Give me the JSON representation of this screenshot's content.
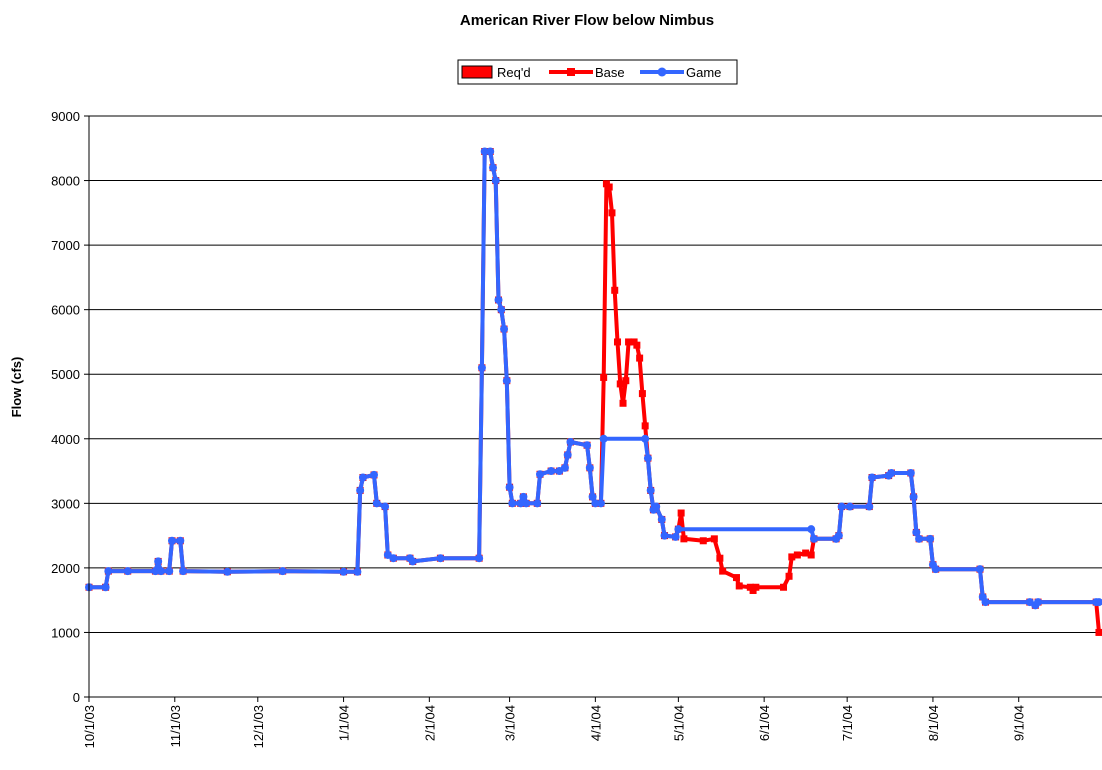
{
  "chart_data": {
    "type": "line",
    "title": "American River Flow below Nimbus",
    "xlabel": "",
    "ylabel": "Flow (cfs)",
    "ylim": [
      0,
      9000
    ],
    "yticks": [
      0,
      1000,
      2000,
      3000,
      4000,
      5000,
      6000,
      7000,
      8000,
      9000
    ],
    "xlim": [
      "2003-10-01",
      "2004-09-30"
    ],
    "x_tick_labels": [
      "10/1/03",
      "11/1/03",
      "12/1/03",
      "1/1/04",
      "2/1/04",
      "3/1/04",
      "4/1/04",
      "5/1/04",
      "6/1/04",
      "7/1/04",
      "8/1/04",
      "9/1/04"
    ],
    "x_tick_dates": [
      "2003-10-01",
      "2003-11-01",
      "2003-12-01",
      "2004-01-01",
      "2004-02-01",
      "2004-03-01",
      "2004-04-01",
      "2004-05-01",
      "2004-06-01",
      "2004-07-01",
      "2004-08-01",
      "2004-09-01"
    ],
    "grid": "horizontal",
    "legend": "top-center",
    "series": [
      {
        "name": "Req'd",
        "kind": "bar",
        "color": "#ff0000",
        "points": []
      },
      {
        "name": "Base",
        "kind": "line",
        "color": "#ff0000",
        "marker": "square",
        "points": [
          [
            "2003-10-01",
            1700
          ],
          [
            "2003-10-07",
            1700
          ],
          [
            "2003-10-08",
            1950
          ],
          [
            "2003-10-15",
            1950
          ],
          [
            "2003-10-25",
            1950
          ],
          [
            "2003-10-26",
            2100
          ],
          [
            "2003-10-27",
            1950
          ],
          [
            "2003-10-30",
            1950
          ],
          [
            "2003-10-31",
            2420
          ],
          [
            "2003-11-03",
            2420
          ],
          [
            "2003-11-04",
            1950
          ],
          [
            "2003-11-20",
            1940
          ],
          [
            "2003-12-10",
            1950
          ],
          [
            "2004-01-01",
            1940
          ],
          [
            "2004-01-06",
            1940
          ],
          [
            "2004-01-07",
            3200
          ],
          [
            "2004-01-08",
            3400
          ],
          [
            "2004-01-12",
            3440
          ],
          [
            "2004-01-13",
            3000
          ],
          [
            "2004-01-16",
            2950
          ],
          [
            "2004-01-17",
            2200
          ],
          [
            "2004-01-19",
            2150
          ],
          [
            "2004-01-25",
            2150
          ],
          [
            "2004-01-26",
            2100
          ],
          [
            "2004-02-05",
            2150
          ],
          [
            "2004-02-19",
            2150
          ],
          [
            "2004-02-20",
            5100
          ],
          [
            "2004-02-21",
            8450
          ],
          [
            "2004-02-23",
            8450
          ],
          [
            "2004-02-24",
            8200
          ],
          [
            "2004-02-25",
            8000
          ],
          [
            "2004-02-26",
            6150
          ],
          [
            "2004-02-27",
            6000
          ],
          [
            "2004-02-28",
            5700
          ],
          [
            "2004-02-29",
            4900
          ],
          [
            "2004-03-01",
            3250
          ],
          [
            "2004-03-02",
            3000
          ],
          [
            "2004-03-05",
            3000
          ],
          [
            "2004-03-06",
            3100
          ],
          [
            "2004-03-07",
            3000
          ],
          [
            "2004-03-11",
            3000
          ],
          [
            "2004-03-12",
            3450
          ],
          [
            "2004-03-16",
            3500
          ],
          [
            "2004-03-19",
            3500
          ],
          [
            "2004-03-21",
            3550
          ],
          [
            "2004-03-22",
            3750
          ],
          [
            "2004-03-23",
            3950
          ],
          [
            "2004-03-29",
            3900
          ],
          [
            "2004-03-30",
            3550
          ],
          [
            "2004-03-31",
            3100
          ],
          [
            "2004-04-01",
            3000
          ],
          [
            "2004-04-03",
            3000
          ],
          [
            "2004-04-04",
            4950
          ],
          [
            "2004-04-05",
            7950
          ],
          [
            "2004-04-06",
            7900
          ],
          [
            "2004-04-07",
            7500
          ],
          [
            "2004-04-08",
            6300
          ],
          [
            "2004-04-09",
            5500
          ],
          [
            "2004-04-10",
            4850
          ],
          [
            "2004-04-11",
            4550
          ],
          [
            "2004-04-12",
            4900
          ],
          [
            "2004-04-13",
            5500
          ],
          [
            "2004-04-15",
            5500
          ],
          [
            "2004-04-16",
            5450
          ],
          [
            "2004-04-17",
            5250
          ],
          [
            "2004-04-18",
            4700
          ],
          [
            "2004-04-19",
            4200
          ],
          [
            "2004-04-20",
            3700
          ],
          [
            "2004-04-21",
            3200
          ],
          [
            "2004-04-22",
            2900
          ],
          [
            "2004-04-23",
            2950
          ],
          [
            "2004-04-25",
            2750
          ],
          [
            "2004-04-26",
            2500
          ],
          [
            "2004-04-30",
            2480
          ],
          [
            "2004-05-01",
            2600
          ],
          [
            "2004-05-02",
            2850
          ],
          [
            "2004-05-03",
            2450
          ],
          [
            "2004-05-10",
            2420
          ],
          [
            "2004-05-14",
            2450
          ],
          [
            "2004-05-16",
            2150
          ],
          [
            "2004-05-17",
            1950
          ],
          [
            "2004-05-22",
            1850
          ],
          [
            "2004-05-23",
            1720
          ],
          [
            "2004-05-27",
            1700
          ],
          [
            "2004-05-28",
            1650
          ],
          [
            "2004-05-29",
            1700
          ],
          [
            "2004-06-08",
            1700
          ],
          [
            "2004-06-10",
            1870
          ],
          [
            "2004-06-11",
            2170
          ],
          [
            "2004-06-13",
            2200
          ],
          [
            "2004-06-16",
            2230
          ],
          [
            "2004-06-18",
            2200
          ],
          [
            "2004-06-19",
            2450
          ],
          [
            "2004-06-27",
            2450
          ],
          [
            "2004-06-28",
            2500
          ],
          [
            "2004-06-29",
            2950
          ],
          [
            "2004-07-02",
            2950
          ],
          [
            "2004-07-09",
            2950
          ],
          [
            "2004-07-10",
            3400
          ],
          [
            "2004-07-16",
            3430
          ],
          [
            "2004-07-17",
            3470
          ],
          [
            "2004-07-24",
            3470
          ],
          [
            "2004-07-25",
            3100
          ],
          [
            "2004-07-26",
            2550
          ],
          [
            "2004-07-27",
            2450
          ],
          [
            "2004-07-31",
            2450
          ],
          [
            "2004-08-01",
            2050
          ],
          [
            "2004-08-02",
            1980
          ],
          [
            "2004-08-18",
            1980
          ],
          [
            "2004-08-19",
            1550
          ],
          [
            "2004-08-20",
            1470
          ],
          [
            "2004-09-05",
            1470
          ],
          [
            "2004-09-07",
            1420
          ],
          [
            "2004-09-08",
            1470
          ],
          [
            "2004-09-29",
            1470
          ],
          [
            "2004-09-30",
            1000
          ]
        ]
      },
      {
        "name": "Game",
        "kind": "line",
        "color": "#3366ff",
        "marker": "circle",
        "points": [
          [
            "2003-10-01",
            1700
          ],
          [
            "2003-10-07",
            1700
          ],
          [
            "2003-10-08",
            1950
          ],
          [
            "2003-10-15",
            1950
          ],
          [
            "2003-10-25",
            1950
          ],
          [
            "2003-10-26",
            2100
          ],
          [
            "2003-10-27",
            1950
          ],
          [
            "2003-10-30",
            1950
          ],
          [
            "2003-10-31",
            2420
          ],
          [
            "2003-11-03",
            2420
          ],
          [
            "2003-11-04",
            1950
          ],
          [
            "2003-11-20",
            1940
          ],
          [
            "2003-12-10",
            1950
          ],
          [
            "2004-01-01",
            1940
          ],
          [
            "2004-01-06",
            1940
          ],
          [
            "2004-01-07",
            3200
          ],
          [
            "2004-01-08",
            3400
          ],
          [
            "2004-01-12",
            3440
          ],
          [
            "2004-01-13",
            3000
          ],
          [
            "2004-01-16",
            2950
          ],
          [
            "2004-01-17",
            2200
          ],
          [
            "2004-01-19",
            2150
          ],
          [
            "2004-01-25",
            2150
          ],
          [
            "2004-01-26",
            2100
          ],
          [
            "2004-02-05",
            2150
          ],
          [
            "2004-02-19",
            2150
          ],
          [
            "2004-02-20",
            5100
          ],
          [
            "2004-02-21",
            8450
          ],
          [
            "2004-02-23",
            8450
          ],
          [
            "2004-02-24",
            8200
          ],
          [
            "2004-02-25",
            8000
          ],
          [
            "2004-02-26",
            6150
          ],
          [
            "2004-02-27",
            6000
          ],
          [
            "2004-02-28",
            5700
          ],
          [
            "2004-02-29",
            4900
          ],
          [
            "2004-03-01",
            3250
          ],
          [
            "2004-03-02",
            3000
          ],
          [
            "2004-03-05",
            3000
          ],
          [
            "2004-03-06",
            3100
          ],
          [
            "2004-03-07",
            3000
          ],
          [
            "2004-03-11",
            3000
          ],
          [
            "2004-03-12",
            3450
          ],
          [
            "2004-03-16",
            3500
          ],
          [
            "2004-03-19",
            3500
          ],
          [
            "2004-03-21",
            3550
          ],
          [
            "2004-03-22",
            3750
          ],
          [
            "2004-03-23",
            3950
          ],
          [
            "2004-03-29",
            3900
          ],
          [
            "2004-03-30",
            3550
          ],
          [
            "2004-03-31",
            3100
          ],
          [
            "2004-04-01",
            3000
          ],
          [
            "2004-04-03",
            3000
          ],
          [
            "2004-04-04",
            4000
          ],
          [
            "2004-04-19",
            4000
          ],
          [
            "2004-04-20",
            3700
          ],
          [
            "2004-04-21",
            3200
          ],
          [
            "2004-04-22",
            2900
          ],
          [
            "2004-04-23",
            2950
          ],
          [
            "2004-04-25",
            2750
          ],
          [
            "2004-04-26",
            2500
          ],
          [
            "2004-04-30",
            2480
          ],
          [
            "2004-05-01",
            2600
          ],
          [
            "2004-06-18",
            2600
          ],
          [
            "2004-06-19",
            2450
          ],
          [
            "2004-06-27",
            2450
          ],
          [
            "2004-06-28",
            2500
          ],
          [
            "2004-06-29",
            2950
          ],
          [
            "2004-07-02",
            2950
          ],
          [
            "2004-07-09",
            2950
          ],
          [
            "2004-07-10",
            3400
          ],
          [
            "2004-07-16",
            3430
          ],
          [
            "2004-07-17",
            3470
          ],
          [
            "2004-07-24",
            3470
          ],
          [
            "2004-07-25",
            3100
          ],
          [
            "2004-07-26",
            2550
          ],
          [
            "2004-07-27",
            2450
          ],
          [
            "2004-07-31",
            2450
          ],
          [
            "2004-08-01",
            2050
          ],
          [
            "2004-08-02",
            1980
          ],
          [
            "2004-08-18",
            1980
          ],
          [
            "2004-08-19",
            1550
          ],
          [
            "2004-08-20",
            1470
          ],
          [
            "2004-09-05",
            1470
          ],
          [
            "2004-09-07",
            1420
          ],
          [
            "2004-09-08",
            1470
          ],
          [
            "2004-09-29",
            1470
          ],
          [
            "2004-09-30",
            1470
          ]
        ]
      }
    ]
  }
}
